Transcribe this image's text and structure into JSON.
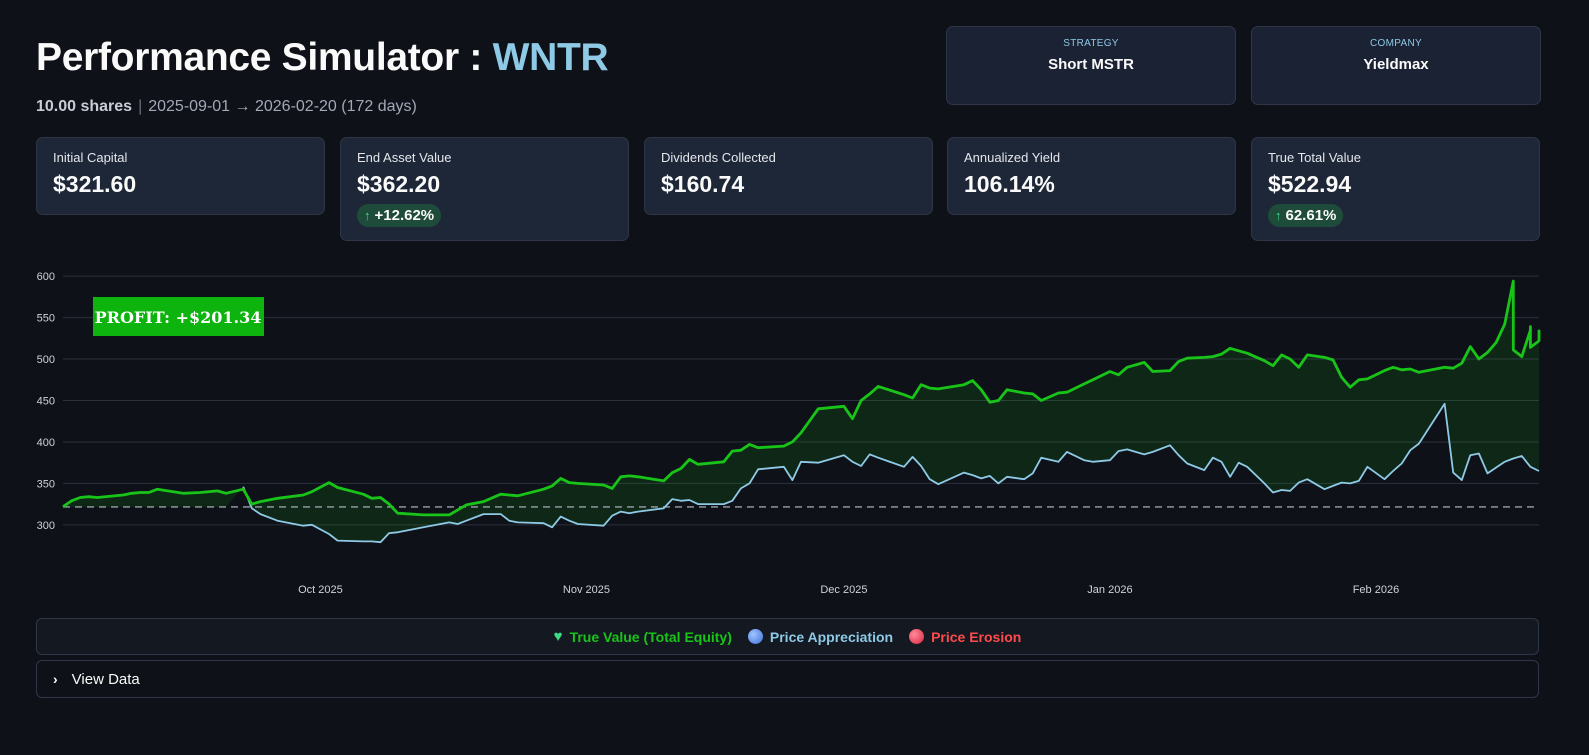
{
  "header": {
    "title": "Performance Simulator : ",
    "ticker": "WNTR",
    "shares": "10.00 shares",
    "separator": "|",
    "date_range": "2025-09-01 → 2026-02-20 (172 days)"
  },
  "info_cards": [
    {
      "label": "STRATEGY",
      "value": "Short MSTR"
    },
    {
      "label": "COMPANY",
      "value": "Yieldmax"
    }
  ],
  "metrics": [
    {
      "label": "Initial Capital",
      "value": "$321.60",
      "delta": ""
    },
    {
      "label": "End Asset Value",
      "value": "$362.20",
      "delta": "+12.62%"
    },
    {
      "label": "Dividends Collected",
      "value": "$160.74",
      "delta": ""
    },
    {
      "label": "Annualized Yield",
      "value": "106.14%",
      "delta": ""
    },
    {
      "label": "True Total Value",
      "value": "$522.94",
      "delta": "62.61%"
    }
  ],
  "colors": {
    "true_value": "#19c419",
    "price": "#8ecae6",
    "erosion": "#ff4b4b",
    "profit_badge": "#0db40d",
    "baseline": "#9aa0aa"
  },
  "legend": {
    "true_value": "True Value (Total Equity)",
    "price_appreciation": "Price Appreciation",
    "price_erosion": "Price Erosion"
  },
  "expander": {
    "label": "View Data"
  },
  "chart_data": {
    "type": "area",
    "title": "",
    "xlabel": "",
    "ylabel": "",
    "annotation": "PROFIT: +$201.34",
    "baseline": 321.6,
    "ylim": [
      260,
      605
    ],
    "xlim": [
      "2025-09-01",
      "2026-02-20"
    ],
    "yticks": [
      300,
      350,
      400,
      450,
      500,
      550,
      600
    ],
    "xticks": [
      {
        "date": "2025-10-01",
        "label": "Oct 2025"
      },
      {
        "date": "2025-11-01",
        "label": "Nov 2025"
      },
      {
        "date": "2025-12-01",
        "label": "Dec 2025"
      },
      {
        "date": "2026-01-01",
        "label": "Jan 2026"
      },
      {
        "date": "2026-02-01",
        "label": "Feb 2026"
      }
    ],
    "grid": true,
    "series": [
      {
        "name": "True Value (Total Equity)",
        "points": [
          [
            "2025-09-01",
            322
          ],
          [
            "2025-09-02",
            329
          ],
          [
            "2025-09-03",
            333
          ],
          [
            "2025-09-04",
            334
          ],
          [
            "2025-09-05",
            333
          ],
          [
            "2025-09-08",
            336
          ],
          [
            "2025-09-09",
            338
          ],
          [
            "2025-09-10",
            339
          ],
          [
            "2025-09-11",
            339
          ],
          [
            "2025-09-12",
            343
          ],
          [
            "2025-09-15",
            338
          ],
          [
            "2025-09-17",
            339
          ],
          [
            "2025-09-19",
            341
          ],
          [
            "2025-09-20",
            338
          ],
          [
            "2025-09-22",
            343
          ],
          [
            "2025-09-23",
            325
          ],
          [
            "2025-09-24",
            328
          ],
          [
            "2025-09-26",
            332
          ],
          [
            "2025-09-29",
            336
          ],
          [
            "2025-09-30",
            340
          ],
          [
            "2025-10-02",
            351
          ],
          [
            "2025-10-03",
            345
          ],
          [
            "2025-10-06",
            337
          ],
          [
            "2025-10-07",
            332
          ],
          [
            "2025-10-08",
            333
          ],
          [
            "2025-10-09",
            325
          ],
          [
            "2025-10-10",
            314
          ],
          [
            "2025-10-13",
            312
          ],
          [
            "2025-10-16",
            312
          ],
          [
            "2025-10-17",
            318
          ],
          [
            "2025-10-18",
            324
          ],
          [
            "2025-10-20",
            328
          ],
          [
            "2025-10-22",
            337
          ],
          [
            "2025-10-23",
            336
          ],
          [
            "2025-10-24",
            335
          ],
          [
            "2025-10-27",
            343
          ],
          [
            "2025-10-28",
            347
          ],
          [
            "2025-10-29",
            356
          ],
          [
            "2025-10-30",
            351
          ],
          [
            "2025-10-31",
            350
          ],
          [
            "2025-11-03",
            348
          ],
          [
            "2025-11-04",
            344
          ],
          [
            "2025-11-05",
            358
          ],
          [
            "2025-11-06",
            359
          ],
          [
            "2025-11-07",
            358
          ],
          [
            "2025-11-10",
            353
          ],
          [
            "2025-11-11",
            363
          ],
          [
            "2025-11-12",
            368
          ],
          [
            "2025-11-13",
            379
          ],
          [
            "2025-11-14",
            373
          ],
          [
            "2025-11-17",
            376
          ],
          [
            "2025-11-18",
            389
          ],
          [
            "2025-11-19",
            390
          ],
          [
            "2025-11-20",
            397
          ],
          [
            "2025-11-21",
            393
          ],
          [
            "2025-11-24",
            395
          ],
          [
            "2025-11-25",
            400
          ],
          [
            "2025-11-26",
            411
          ],
          [
            "2025-11-28",
            440
          ],
          [
            "2025-12-01",
            443
          ],
          [
            "2025-12-02",
            428
          ],
          [
            "2025-12-03",
            450
          ],
          [
            "2025-12-04",
            458
          ],
          [
            "2025-12-05",
            467
          ],
          [
            "2025-12-08",
            457
          ],
          [
            "2025-12-09",
            453
          ],
          [
            "2025-12-10",
            469
          ],
          [
            "2025-12-11",
            465
          ],
          [
            "2025-12-12",
            464
          ],
          [
            "2025-12-15",
            469
          ],
          [
            "2025-12-16",
            474
          ],
          [
            "2025-12-17",
            463
          ],
          [
            "2025-12-18",
            448
          ],
          [
            "2025-12-19",
            450
          ],
          [
            "2025-12-20",
            463
          ],
          [
            "2025-12-22",
            459
          ],
          [
            "2025-12-23",
            458
          ],
          [
            "2025-12-24",
            450
          ],
          [
            "2025-12-26",
            459
          ],
          [
            "2025-12-27",
            460
          ],
          [
            "2025-12-29",
            470
          ],
          [
            "2025-12-30",
            475
          ],
          [
            "2026-01-01",
            485
          ],
          [
            "2026-01-02",
            481
          ],
          [
            "2026-01-03",
            490
          ],
          [
            "2026-01-05",
            496
          ],
          [
            "2026-01-06",
            485
          ],
          [
            "2026-01-08",
            486
          ],
          [
            "2026-01-09",
            497
          ],
          [
            "2026-01-10",
            501
          ],
          [
            "2026-01-12",
            502
          ],
          [
            "2026-01-13",
            503
          ],
          [
            "2026-01-14",
            506
          ],
          [
            "2026-01-15",
            513
          ],
          [
            "2026-01-16",
            510
          ],
          [
            "2026-01-17",
            507
          ],
          [
            "2026-01-19",
            498
          ],
          [
            "2026-01-20",
            492
          ],
          [
            "2026-01-21",
            505
          ],
          [
            "2026-01-22",
            500
          ],
          [
            "2026-01-23",
            490
          ],
          [
            "2026-01-24",
            505
          ],
          [
            "2026-01-26",
            502
          ],
          [
            "2026-01-27",
            499
          ],
          [
            "2026-01-28",
            478
          ],
          [
            "2026-01-29",
            466
          ],
          [
            "2026-01-30",
            475
          ],
          [
            "2026-01-31",
            476
          ],
          [
            "2026-02-02",
            486
          ],
          [
            "2026-02-03",
            490
          ],
          [
            "2026-02-04",
            487
          ],
          [
            "2026-02-05",
            488
          ],
          [
            "2026-02-06",
            484
          ],
          [
            "2026-02-09",
            490
          ],
          [
            "2026-02-10",
            489
          ],
          [
            "2026-02-11",
            495
          ],
          [
            "2026-02-12",
            515
          ],
          [
            "2026-02-13",
            500
          ],
          [
            "2026-02-14",
            508
          ],
          [
            "2026-02-15",
            520
          ],
          [
            "2026-02-16",
            542
          ],
          [
            "2026-02-17",
            594
          ],
          [
            "2026-02-17",
            511
          ],
          [
            "2026-02-18",
            503
          ],
          [
            "2026-02-19",
            535
          ],
          [
            "2026-02-19",
            539
          ],
          [
            "2026-02-19",
            514
          ],
          [
            "2026-02-20",
            522
          ],
          [
            "2026-02-20",
            534
          ],
          [
            "2026-02-20",
            523
          ]
        ]
      },
      {
        "name": "Price Appreciation",
        "points": [
          [
            "2025-09-22",
            346
          ],
          [
            "2025-09-23",
            320
          ],
          [
            "2025-09-24",
            313
          ],
          [
            "2025-09-26",
            305
          ],
          [
            "2025-09-29",
            299
          ],
          [
            "2025-09-30",
            300
          ],
          [
            "2025-10-02",
            289
          ],
          [
            "2025-10-03",
            281
          ],
          [
            "2025-10-06",
            280
          ],
          [
            "2025-10-07",
            280
          ],
          [
            "2025-10-08",
            279
          ],
          [
            "2025-10-09",
            290
          ],
          [
            "2025-10-10",
            291
          ],
          [
            "2025-10-13",
            297
          ],
          [
            "2025-10-16",
            303
          ],
          [
            "2025-10-17",
            301
          ],
          [
            "2025-10-18",
            305
          ],
          [
            "2025-10-20",
            313
          ],
          [
            "2025-10-22",
            313
          ],
          [
            "2025-10-23",
            305
          ],
          [
            "2025-10-24",
            303
          ],
          [
            "2025-10-27",
            302
          ],
          [
            "2025-10-28",
            297
          ],
          [
            "2025-10-29",
            310
          ],
          [
            "2025-10-30",
            305
          ],
          [
            "2025-10-31",
            301
          ],
          [
            "2025-11-03",
            299
          ],
          [
            "2025-11-04",
            311
          ],
          [
            "2025-11-05",
            316
          ],
          [
            "2025-11-06",
            314
          ],
          [
            "2025-11-07",
            316
          ],
          [
            "2025-11-10",
            320
          ],
          [
            "2025-11-11",
            331
          ],
          [
            "2025-11-12",
            329
          ],
          [
            "2025-11-13",
            330
          ],
          [
            "2025-11-14",
            325
          ],
          [
            "2025-11-17",
            325
          ],
          [
            "2025-11-18",
            329
          ],
          [
            "2025-11-19",
            344
          ],
          [
            "2025-11-20",
            350
          ],
          [
            "2025-11-21",
            367
          ],
          [
            "2025-11-24",
            370
          ],
          [
            "2025-11-25",
            354
          ],
          [
            "2025-11-26",
            376
          ],
          [
            "2025-11-28",
            375
          ],
          [
            "2025-12-01",
            384
          ],
          [
            "2025-12-02",
            376
          ],
          [
            "2025-12-03",
            371
          ],
          [
            "2025-12-04",
            385
          ],
          [
            "2025-12-05",
            381
          ],
          [
            "2025-12-08",
            370
          ],
          [
            "2025-12-09",
            382
          ],
          [
            "2025-12-10",
            371
          ],
          [
            "2025-12-11",
            355
          ],
          [
            "2025-12-12",
            349
          ],
          [
            "2025-12-15",
            363
          ],
          [
            "2025-12-16",
            360
          ],
          [
            "2025-12-17",
            356
          ],
          [
            "2025-12-18",
            359
          ],
          [
            "2025-12-19",
            350
          ],
          [
            "2025-12-20",
            358
          ],
          [
            "2025-12-22",
            355
          ],
          [
            "2025-12-23",
            362
          ],
          [
            "2025-12-24",
            381
          ],
          [
            "2025-12-26",
            376
          ],
          [
            "2025-12-27",
            388
          ],
          [
            "2025-12-29",
            378
          ],
          [
            "2025-12-30",
            376
          ],
          [
            "2026-01-01",
            378
          ],
          [
            "2026-01-02",
            389
          ],
          [
            "2026-01-03",
            391
          ],
          [
            "2026-01-05",
            385
          ],
          [
            "2026-01-06",
            388
          ],
          [
            "2026-01-08",
            396
          ],
          [
            "2026-01-09",
            384
          ],
          [
            "2026-01-10",
            374
          ],
          [
            "2026-01-12",
            366
          ],
          [
            "2026-01-13",
            381
          ],
          [
            "2026-01-14",
            376
          ],
          [
            "2026-01-15",
            358
          ],
          [
            "2026-01-16",
            375
          ],
          [
            "2026-01-17",
            370
          ],
          [
            "2026-01-19",
            350
          ],
          [
            "2026-01-20",
            339
          ],
          [
            "2026-01-21",
            342
          ],
          [
            "2026-01-22",
            341
          ],
          [
            "2026-01-23",
            351
          ],
          [
            "2026-01-24",
            355
          ],
          [
            "2026-01-26",
            343
          ],
          [
            "2026-01-27",
            347
          ],
          [
            "2026-01-28",
            351
          ],
          [
            "2026-01-29",
            350
          ],
          [
            "2026-01-30",
            353
          ],
          [
            "2026-01-31",
            370
          ],
          [
            "2026-02-02",
            355
          ],
          [
            "2026-02-03",
            365
          ],
          [
            "2026-02-04",
            374
          ],
          [
            "2026-02-05",
            390
          ],
          [
            "2026-02-06",
            398
          ],
          [
            "2026-02-09",
            446
          ],
          [
            "2026-02-10",
            363
          ],
          [
            "2026-02-11",
            354
          ],
          [
            "2026-02-12",
            384
          ],
          [
            "2026-02-13",
            386
          ],
          [
            "2026-02-14",
            362
          ],
          [
            "2026-02-16",
            376
          ],
          [
            "2026-02-17",
            380
          ],
          [
            "2026-02-18",
            383
          ],
          [
            "2026-02-19",
            370
          ],
          [
            "2026-02-20",
            365
          ]
        ]
      }
    ]
  }
}
